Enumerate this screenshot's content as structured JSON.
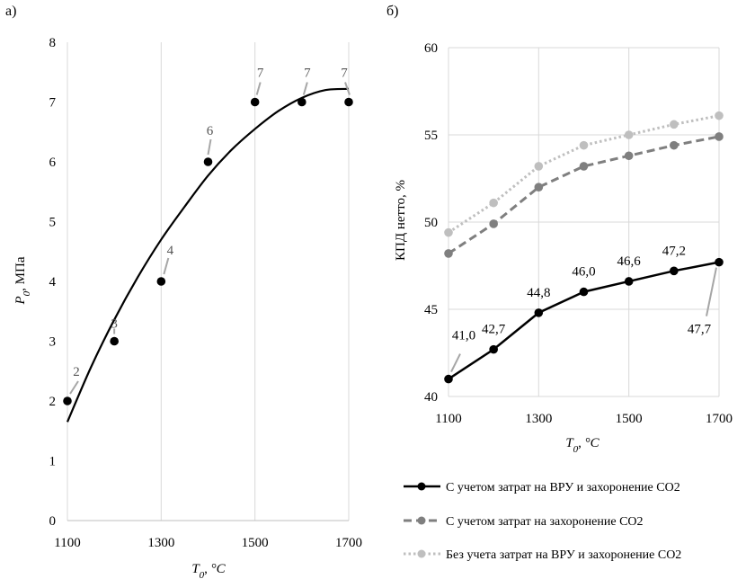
{
  "chart_data": [
    {
      "type": "scatter",
      "panel_label": "а)",
      "title": "",
      "xlabel_var": "T",
      "xlabel_sub": "0",
      "xlabel_unit": ", °C",
      "ylabel_var": "P",
      "ylabel_sub": "0",
      "ylabel_unit": ", МПа",
      "xlim": [
        1100,
        1700
      ],
      "ylim": [
        0,
        8
      ],
      "x_ticks": [
        "1100",
        "1300",
        "1500",
        "1700"
      ],
      "x_tick_values": [
        1100,
        1300,
        1500,
        1700
      ],
      "y_ticks": [
        "0",
        "1",
        "2",
        "3",
        "4",
        "5",
        "6",
        "7",
        "8"
      ],
      "y_tick_values": [
        0,
        1,
        2,
        3,
        4,
        5,
        6,
        7,
        8
      ],
      "x_gridlines": [
        1100,
        1300,
        1500,
        1700
      ],
      "grid": true,
      "points": [
        {
          "x": 1100,
          "y": 2,
          "label": "2"
        },
        {
          "x": 1200,
          "y": 3,
          "label": "3"
        },
        {
          "x": 1300,
          "y": 4,
          "label": "4"
        },
        {
          "x": 1400,
          "y": 6,
          "label": "6"
        },
        {
          "x": 1500,
          "y": 7,
          "label": "7"
        },
        {
          "x": 1600,
          "y": 7,
          "label": "7"
        },
        {
          "x": 1700,
          "y": 7,
          "label": "7"
        }
      ],
      "trendline": {
        "type": "polynomial",
        "x": [
          1100,
          1150,
          1200,
          1250,
          1300,
          1350,
          1400,
          1450,
          1500,
          1550,
          1600,
          1650,
          1700
        ],
        "y": [
          1.65,
          2.56,
          3.36,
          4.07,
          4.7,
          5.25,
          5.77,
          6.2,
          6.55,
          6.85,
          7.07,
          7.2,
          7.22
        ]
      }
    },
    {
      "type": "line",
      "panel_label": "б)",
      "title": "",
      "xlabel_var": "T",
      "xlabel_sub": "0",
      "xlabel_unit": ", °C",
      "ylabel": "КПД нетто, %",
      "xlim": [
        1100,
        1700
      ],
      "ylim": [
        40,
        60
      ],
      "x": [
        1100,
        1200,
        1300,
        1400,
        1500,
        1600,
        1700
      ],
      "x_ticks": [
        "1100",
        "1300",
        "1500",
        "1700"
      ],
      "x_tick_values": [
        1100,
        1300,
        1500,
        1700
      ],
      "y_ticks": [
        "40",
        "45",
        "50",
        "55",
        "60"
      ],
      "y_tick_values": [
        40,
        45,
        50,
        55,
        60
      ],
      "grid": true,
      "series": [
        {
          "name": "С учетом затрат на ВРУ и захоронение СО2",
          "color": "#000000",
          "style": "solid",
          "values": [
            41.0,
            42.7,
            44.8,
            46.0,
            46.6,
            47.2,
            47.7
          ],
          "labels": [
            "41,0",
            "42,7",
            "44,8",
            "46,0",
            "46,6",
            "47,2",
            "47,7"
          ]
        },
        {
          "name": "С учетом затрат на захоронение СО2",
          "color": "#7f7f7f",
          "style": "dashed",
          "values": [
            48.2,
            49.9,
            52.0,
            53.2,
            53.8,
            54.4,
            54.9
          ]
        },
        {
          "name": "Без учета затрат на ВРУ и захоронение СО2",
          "color": "#bfbfbf",
          "style": "dotted",
          "values": [
            49.4,
            51.1,
            53.2,
            54.4,
            55.0,
            55.6,
            56.1
          ]
        }
      ],
      "legend": "bottom"
    }
  ]
}
